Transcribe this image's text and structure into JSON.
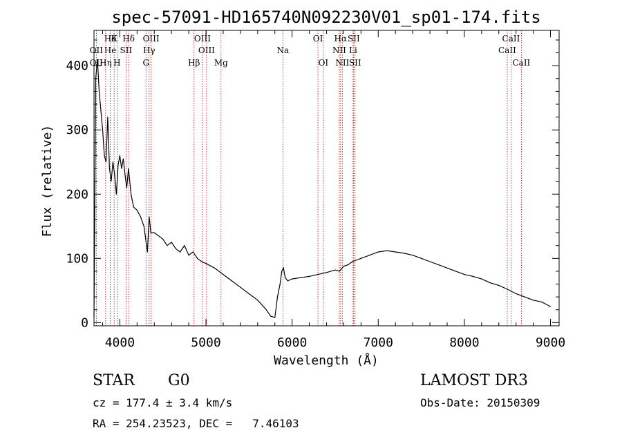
{
  "chart_data": {
    "type": "line",
    "title": "spec-57091-HD165740N092230V01_sp01-174.fits",
    "xlabel": "Wavelength (Å)",
    "ylabel": "Flux (relative)",
    "xlim": [
      3700,
      9100
    ],
    "ylim": [
      -5,
      455
    ],
    "xticks": [
      4000,
      5000,
      6000,
      7000,
      8000,
      9000
    ],
    "yticks": [
      0,
      100,
      200,
      300,
      400
    ],
    "series": [
      {
        "x": [
          3700,
          3720,
          3740,
          3760,
          3780,
          3800,
          3820,
          3840,
          3860,
          3880,
          3900,
          3920,
          3940,
          3960,
          3980,
          4000,
          4020,
          4040,
          4060,
          4080,
          4100,
          4130,
          4160,
          4200,
          4240,
          4280,
          4300,
          4320,
          4340,
          4360,
          4400,
          4450,
          4500,
          4550,
          4600,
          4650,
          4700,
          4750,
          4800,
          4850,
          4900,
          4950,
          5000,
          5100,
          5200,
          5300,
          5400,
          5500,
          5600,
          5700,
          5750,
          5800,
          5830,
          5860,
          5880,
          5900,
          5920,
          5950,
          6000,
          6100,
          6200,
          6300,
          6400,
          6500,
          6550,
          6600,
          6650,
          6700,
          6800,
          6900,
          7000,
          7100,
          7200,
          7300,
          7400,
          7500,
          7600,
          7700,
          7800,
          7900,
          8000,
          8100,
          8200,
          8300,
          8400,
          8500,
          8600,
          8700,
          8800,
          8900,
          9000
        ],
        "values": [
          10,
          380,
          410,
          360,
          330,
          300,
          260,
          250,
          320,
          240,
          220,
          250,
          230,
          200,
          245,
          260,
          240,
          255,
          230,
          210,
          240,
          200,
          180,
          175,
          165,
          150,
          130,
          110,
          165,
          140,
          140,
          135,
          130,
          120,
          125,
          115,
          110,
          120,
          105,
          110,
          100,
          95,
          92,
          85,
          75,
          65,
          55,
          45,
          35,
          20,
          10,
          8,
          40,
          60,
          80,
          85,
          70,
          65,
          68,
          70,
          72,
          75,
          78,
          82,
          80,
          88,
          90,
          95,
          100,
          105,
          110,
          112,
          110,
          108,
          105,
          100,
          95,
          90,
          85,
          80,
          75,
          72,
          68,
          62,
          58,
          52,
          45,
          40,
          35,
          32,
          25
        ]
      }
    ],
    "lines": [
      {
        "name": "Hδ",
        "wl": 3889,
        "row": 0
      },
      {
        "name": "K",
        "wl": 3934,
        "row": 0
      },
      {
        "name": "Hδ",
        "wl": 4102,
        "row": 0
      },
      {
        "name": "OIII",
        "wl": 4363,
        "row": 0
      },
      {
        "name": "OIII",
        "wl": 4959,
        "row": 0
      },
      {
        "name": "OI",
        "wl": 6300,
        "row": 0
      },
      {
        "name": "Hα",
        "wl": 6563,
        "row": 0
      },
      {
        "name": "SII",
        "wl": 6716,
        "row": 0
      },
      {
        "name": "CaII",
        "wl": 8542,
        "row": 0
      },
      {
        "name": "OII",
        "wl": 3727,
        "row": 1
      },
      {
        "name": "He",
        "wl": 3889,
        "row": 1
      },
      {
        "name": "SII",
        "wl": 4072,
        "row": 1
      },
      {
        "name": "Hγ",
        "wl": 4340,
        "row": 1
      },
      {
        "name": "OIII",
        "wl": 5007,
        "row": 1
      },
      {
        "name": "Na",
        "wl": 5893,
        "row": 1
      },
      {
        "name": "NII",
        "wl": 6548,
        "row": 1
      },
      {
        "name": "Li",
        "wl": 6708,
        "row": 1
      },
      {
        "name": "CaII",
        "wl": 8498,
        "row": 1
      },
      {
        "name": "OII",
        "wl": 3727,
        "row": 2
      },
      {
        "name": "Hη",
        "wl": 3835,
        "row": 2
      },
      {
        "name": "H",
        "wl": 3968,
        "row": 2
      },
      {
        "name": "G",
        "wl": 4304,
        "row": 2
      },
      {
        "name": "Hβ",
        "wl": 4861,
        "row": 2
      },
      {
        "name": "Mg",
        "wl": 5175,
        "row": 2
      },
      {
        "name": "OI",
        "wl": 6363,
        "row": 2
      },
      {
        "name": "NII",
        "wl": 6583,
        "row": 2
      },
      {
        "name": "SII",
        "wl": 6731,
        "row": 2
      },
      {
        "name": "CaII",
        "wl": 8662,
        "row": 2
      }
    ]
  },
  "info": {
    "object": "STAR",
    "subclass": "G0",
    "survey": "LAMOST DR3",
    "cz": "cz = 177.4 ± 3.4 km/s",
    "obsdate": "Obs-Date: 20150309",
    "radec": "RA = 254.23523, DEC =   7.46103"
  }
}
